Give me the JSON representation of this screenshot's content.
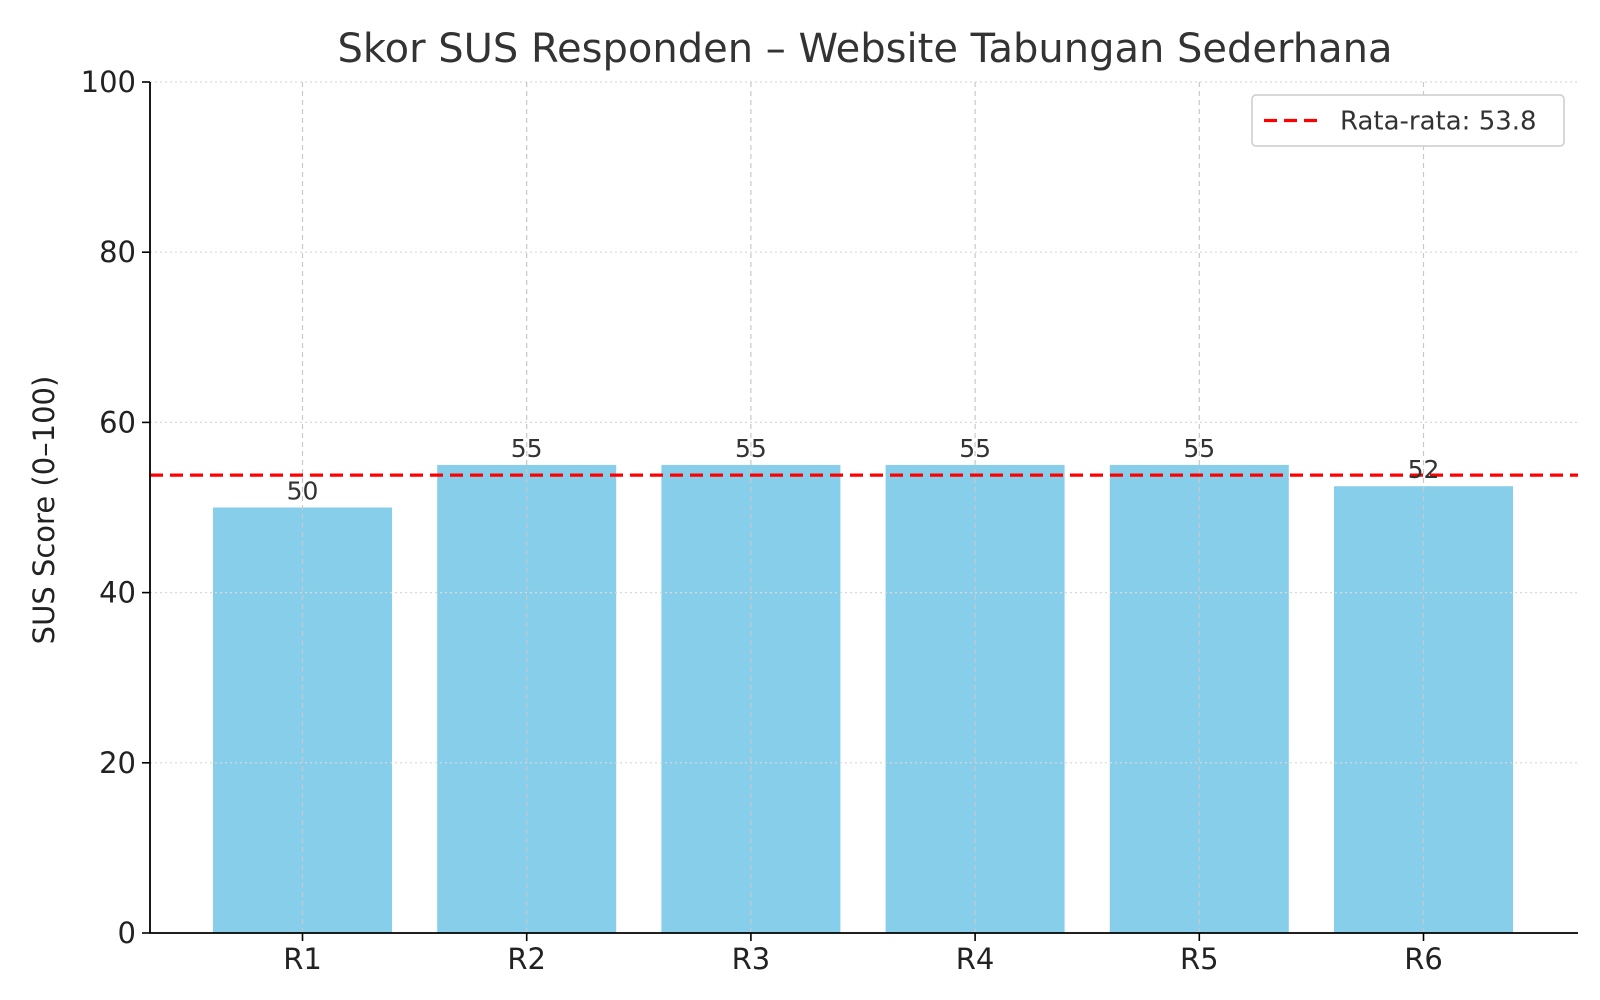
{
  "chart_data": {
    "type": "bar",
    "title": "Skor SUS Responden – Website Tabungan Sederhana",
    "xlabel": "",
    "ylabel": "SUS Score (0–100)",
    "categories": [
      "R1",
      "R2",
      "R3",
      "R4",
      "R5",
      "R6"
    ],
    "values": [
      50,
      55,
      55,
      55,
      55,
      52.5
    ],
    "data_labels": [
      "50",
      "55",
      "55",
      "55",
      "55",
      "52"
    ],
    "ylim": [
      0,
      100
    ],
    "yticks": [
      0,
      20,
      40,
      60,
      80,
      100
    ],
    "ytick_labels": [
      "0",
      "20",
      "40",
      "60",
      "80",
      "100"
    ],
    "bar_color": "#87CEEB",
    "grid": true,
    "legend": {
      "placement": "top-right",
      "entries": [
        "Rata-rata: 53.8"
      ]
    },
    "reference_line": {
      "value": 53.8,
      "color": "#FF0000",
      "style": "dashed",
      "label": "Rata-rata: 53.8"
    }
  }
}
